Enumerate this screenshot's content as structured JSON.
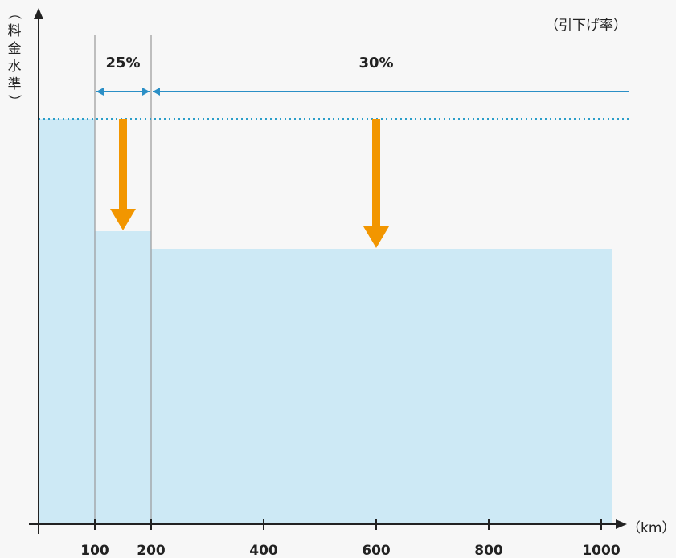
{
  "chart_data": {
    "type": "area",
    "title": "",
    "ylabel": "（料金水準）",
    "ylabel_chars": [
      "（",
      "料",
      "金",
      "水",
      "準",
      "）"
    ],
    "xunit": "（km）",
    "rate_header": "（引下げ率）",
    "x_ticks": [
      100,
      200,
      400,
      600,
      800,
      1000
    ],
    "x_tick_labels": [
      "100",
      "200",
      "400",
      "600",
      "800",
      "1000"
    ],
    "x_range": [
      0,
      1040
    ],
    "y_range": [
      0,
      100
    ],
    "base_level": 100,
    "steps": [
      {
        "x_start": 0,
        "x_end": 100,
        "value": 100
      },
      {
        "x_start": 100,
        "x_end": 200,
        "value": 75
      },
      {
        "x_start": 200,
        "x_end": 1020,
        "value": 70
      }
    ],
    "reductions": [
      {
        "label": "25%",
        "from_x": 100,
        "to_x": 200,
        "arrow_x": 150
      },
      {
        "label": "30%",
        "from_x": 200,
        "to_x": 1040,
        "arrow_x": 600
      }
    ],
    "colors": {
      "fill": "#cde9f5",
      "reduction_line": "#2b8fc6",
      "base_dotted": "#2b9ec9",
      "arrow": "#f29600",
      "axis": "#222222",
      "divider": "#999999"
    }
  }
}
